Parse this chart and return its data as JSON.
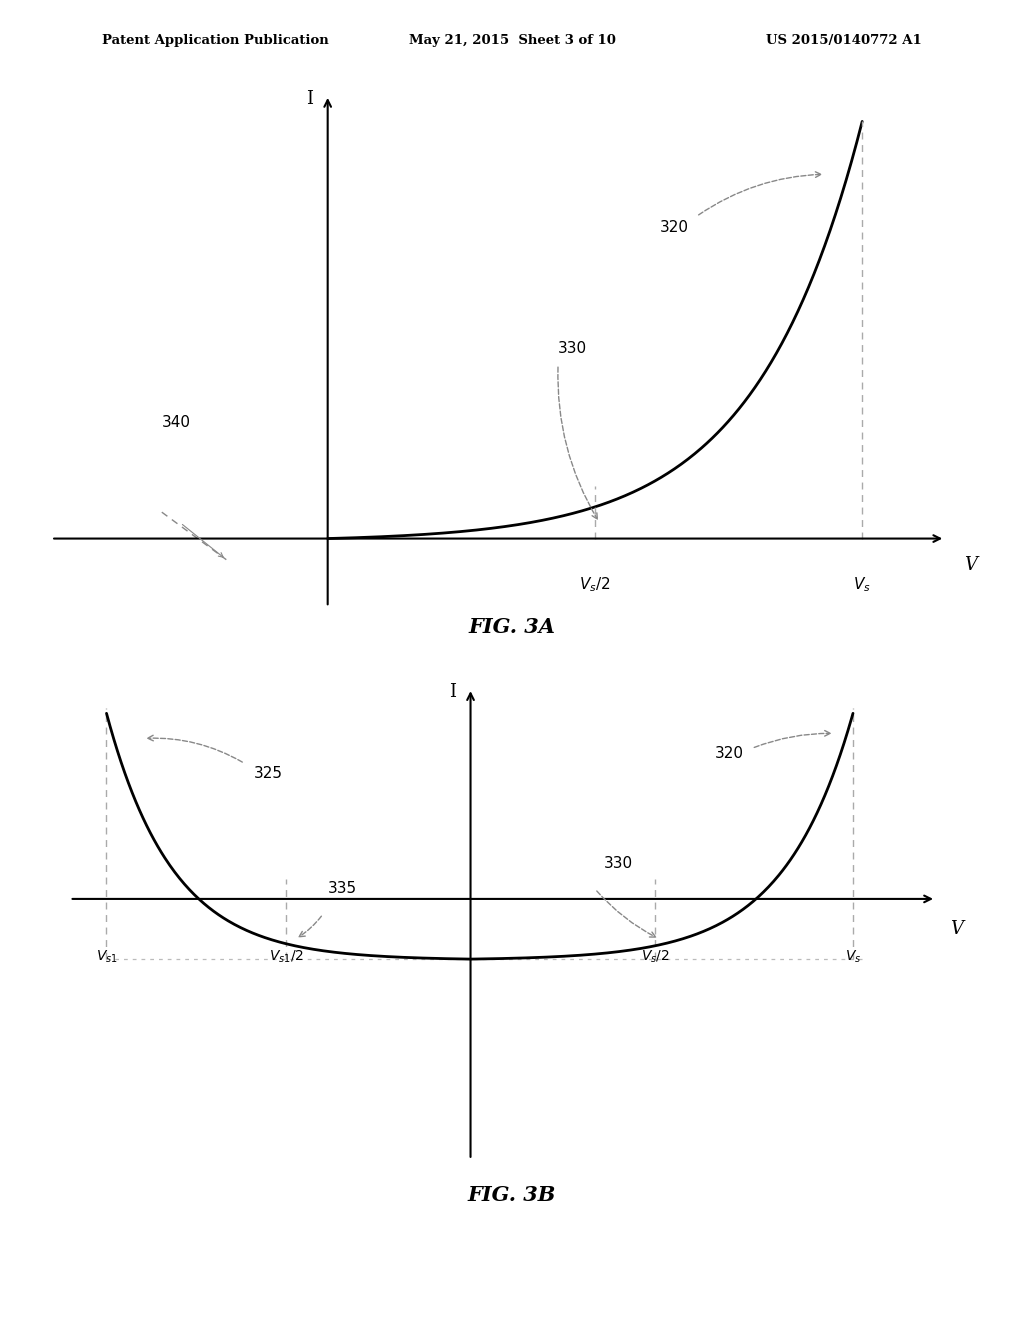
{
  "background_color": "#ffffff",
  "header_left": "Patent Application Publication",
  "header_center": "May 21, 2015  Sheet 3 of 10",
  "header_right": "US 2015/0140772 A1",
  "fig3a_title": "FIG. 3A",
  "fig3b_title": "FIG. 3B",
  "curve_color": "#000000",
  "dash_color": "#aaaaaa",
  "annot_color": "#888888",
  "axis_color": "#000000"
}
